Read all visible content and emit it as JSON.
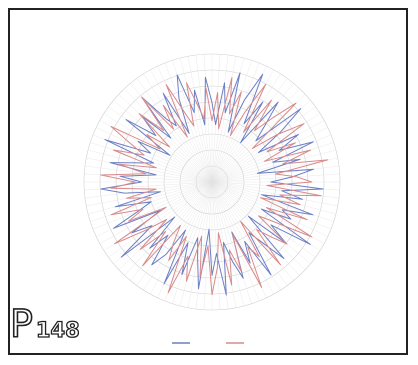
{
  "page_mark": {
    "letter": "P",
    "number": "148"
  },
  "colors": {
    "series_a": "#6b7fc6",
    "series_b": "#d98a8a",
    "grid": "#cfcfcf",
    "frame": "#222222"
  },
  "chart_data": {
    "type": "radar",
    "title": "",
    "grid": true,
    "legend_placement": "bottom",
    "series": [
      {
        "color": "#6b7fc6",
        "values": [
          0.62,
          0.45,
          0.78,
          0.55,
          0.88,
          0.41,
          0.69,
          0.93,
          0.52,
          0.74,
          0.38,
          0.81,
          0.6,
          0.47,
          0.9,
          0.66,
          0.43,
          0.77,
          0.58,
          0.85,
          0.5,
          0.71,
          0.36,
          0.8,
          0.63,
          0.46,
          0.87,
          0.55,
          0.72,
          0.4,
          0.83,
          0.59,
          0.68,
          0.44,
          0.91,
          0.57,
          0.75,
          0.39,
          0.82,
          0.61,
          0.49,
          0.86,
          0.53,
          0.7,
          0.42,
          0.79,
          0.64,
          0.48,
          0.89,
          0.56,
          0.73,
          0.37,
          0.84,
          0.6,
          0.45,
          0.76,
          0.51,
          0.88,
          0.43,
          0.67,
          0.8,
          0.54,
          0.71,
          0.4,
          0.92,
          0.58,
          0.74,
          0.46,
          0.85,
          0.62,
          0.5,
          0.78,
          0.41,
          0.69,
          0.87,
          0.55,
          0.72,
          0.44,
          0.81,
          0.6,
          0.48,
          0.9,
          0.53,
          0.66,
          0.39,
          0.83,
          0.57,
          0.75,
          0.47,
          0.86,
          0.61,
          0.52,
          0.79,
          0.42,
          0.7,
          0.88,
          0.56,
          0.73,
          0.45,
          0.82
        ]
      },
      {
        "color": "#d98a8a",
        "values": [
          0.48,
          0.7,
          0.42,
          0.83,
          0.55,
          0.74,
          0.39,
          0.6,
          0.87,
          0.46,
          0.79,
          0.52,
          0.68,
          0.9,
          0.41,
          0.63,
          0.85,
          0.49,
          0.72,
          0.44,
          0.81,
          0.57,
          0.92,
          0.5,
          0.66,
          0.78,
          0.43,
          0.86,
          0.54,
          0.71,
          0.4,
          0.8,
          0.47,
          0.89,
          0.59,
          0.45,
          0.76,
          0.62,
          0.51,
          0.84,
          0.38,
          0.69,
          0.58,
          0.91,
          0.44,
          0.73,
          0.55,
          0.82,
          0.4,
          0.67,
          0.88,
          0.5,
          0.75,
          0.43,
          0.8,
          0.61,
          0.93,
          0.47,
          0.7,
          0.56,
          0.42,
          0.85,
          0.53,
          0.77,
          0.46,
          0.64,
          0.9,
          0.41,
          0.72,
          0.58,
          0.83,
          0.49,
          0.68,
          0.44,
          0.79,
          0.6,
          0.87,
          0.52,
          0.74,
          0.45,
          0.81,
          0.57,
          0.7,
          0.9,
          0.48,
          0.63,
          0.43,
          0.78,
          0.55,
          0.86,
          0.51,
          0.71,
          0.4,
          0.84,
          0.59,
          0.46,
          0.8,
          0.62,
          0.5,
          0.73
        ]
      }
    ]
  }
}
